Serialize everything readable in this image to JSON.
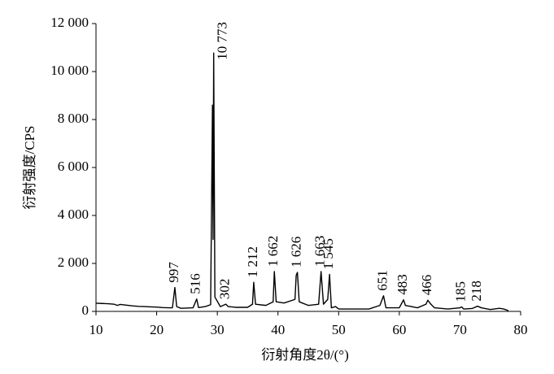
{
  "chart_data": {
    "type": "line",
    "xlabel": "衍射角度2θ/(°)",
    "ylabel": "衍射强度/CPS",
    "xlim": [
      10,
      80
    ],
    "xticks": [
      10,
      20,
      30,
      40,
      50,
      60,
      70,
      80
    ],
    "ylim": [
      0,
      12000
    ],
    "yticks": [
      0,
      {
        "value": 2000,
        "label": "2 000"
      },
      {
        "value": 4000,
        "label": "4 000"
      },
      {
        "value": 6000,
        "label": "6 000"
      },
      {
        "value": 8000,
        "label": "8 000"
      },
      {
        "value": 10000,
        "label": "10 000"
      },
      {
        "value": 12000,
        "label": "12 000"
      }
    ],
    "color": "#000000",
    "x": [
      10,
      11,
      12,
      13,
      13.5,
      14,
      15,
      16,
      17,
      18,
      19,
      20,
      21,
      22,
      22.6,
      23.0,
      23.3,
      24,
      26,
      26.6,
      26.9,
      28,
      28.9,
      29.2,
      29.3,
      29.4,
      29.6,
      30.5,
      31.4,
      31.8,
      33,
      35,
      35.8,
      36.0,
      36.3,
      38,
      39.2,
      39.4,
      39.7,
      41,
      42.8,
      43.0,
      43.2,
      43.5,
      45,
      46.7,
      47.1,
      47.5,
      48.2,
      48.5,
      48.8,
      49.5,
      50,
      52,
      55,
      56.8,
      57.4,
      57.8,
      60,
      60.7,
      61,
      62,
      63,
      64.4,
      64.7,
      65.2,
      65.8,
      68,
      70,
      70.3,
      70.6,
      72,
      72.9,
      73.5,
      75,
      76.5,
      77.2,
      78
    ],
    "values": [
      340,
      330,
      320,
      300,
      250,
      290,
      260,
      230,
      210,
      200,
      190,
      180,
      160,
      150,
      150,
      997,
      200,
      130,
      150,
      516,
      160,
      200,
      280,
      8600,
      3000,
      10773,
      600,
      200,
      302,
      200,
      170,
      170,
      300,
      1212,
      300,
      250,
      400,
      1662,
      400,
      350,
      500,
      1500,
      1626,
      400,
      250,
      300,
      1663,
      300,
      500,
      1545,
      150,
      200,
      100,
      100,
      100,
      250,
      651,
      150,
      150,
      483,
      250,
      200,
      150,
      300,
      466,
      300,
      150,
      100,
      150,
      185,
      100,
      120,
      218,
      150,
      80,
      130,
      100,
      30
    ],
    "peaks": {
      "x": [
        23.0,
        26.6,
        29.4,
        31.4,
        36.0,
        39.4,
        43.2,
        47.1,
        48.5,
        57.4,
        60.7,
        64.7,
        70.3,
        72.9
      ],
      "values": [
        997,
        516,
        10773,
        302,
        1212,
        1662,
        1626,
        1663,
        1545,
        651,
        483,
        466,
        185,
        218
      ],
      "value_labels": [
        "997",
        "516",
        "10 773",
        "302",
        "1 212",
        "1 662",
        "1 626",
        "1 663",
        "1 545",
        "651",
        "483",
        "466",
        "185",
        "218"
      ]
    }
  }
}
